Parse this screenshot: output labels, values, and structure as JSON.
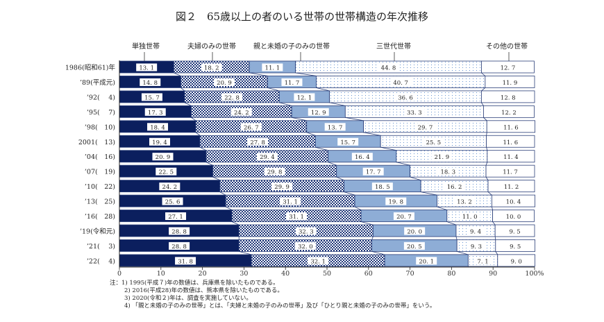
{
  "chart_data": {
    "type": "bar",
    "orientation": "horizontal",
    "stacked": true,
    "title": "図２　65歳以上の者のいる世帯の世帯構造の年次推移",
    "categories": [
      "1986(昭和61)年",
      "’89(平成元)",
      "’92(　 4)",
      "’95(　 7)",
      "’98(　10)",
      "2001(　13)",
      "’04(　16)",
      "’07(　19)",
      "’10(　22)",
      "’13(　25)",
      "’16(　28)",
      "’19(令和元)",
      "’21(　 3)",
      "’22(　 4)"
    ],
    "series": [
      {
        "name": "単独世帯",
        "color": "#0b1f5e",
        "pattern": "solid",
        "values": [
          13.1,
          14.8,
          15.7,
          17.3,
          18.4,
          19.4,
          20.9,
          22.5,
          24.2,
          25.6,
          27.1,
          28.8,
          28.8,
          31.8
        ]
      },
      {
        "name": "夫婦のみの世帯",
        "color": "#1c3478",
        "pattern": "checker",
        "values": [
          18.2,
          20.9,
          22.8,
          24.2,
          26.7,
          27.8,
          29.4,
          29.8,
          29.9,
          31.1,
          31.1,
          32.3,
          32.0,
          32.1
        ]
      },
      {
        "name": "親と未婚の子のみの世帯",
        "color": "#8eadd6",
        "pattern": "solid",
        "values": [
          11.1,
          11.7,
          12.1,
          12.9,
          13.7,
          15.7,
          16.4,
          17.7,
          18.5,
          19.8,
          20.7,
          20.0,
          20.5,
          20.1
        ]
      },
      {
        "name": "三世代世帯",
        "color": "#5f8fd0",
        "pattern": "dots",
        "values": [
          44.8,
          40.7,
          36.6,
          33.3,
          29.7,
          25.5,
          21.9,
          18.3,
          16.2,
          13.2,
          11.0,
          9.4,
          9.3,
          7.1
        ]
      },
      {
        "name": "その他の世帯",
        "color": "#ffffff",
        "pattern": "solid",
        "values": [
          12.7,
          11.9,
          12.8,
          12.2,
          11.6,
          11.6,
          11.4,
          11.7,
          11.2,
          10.4,
          10.0,
          9.5,
          9.5,
          9.0
        ]
      }
    ],
    "xlim": [
      0,
      100
    ],
    "xticks": [
      "0",
      "10",
      "20",
      "30",
      "40",
      "50",
      "60",
      "70",
      "80",
      "90",
      "100%"
    ],
    "legend_placement": "top",
    "grid": false,
    "notes": [
      "注：1)  1995(平成７)年の数値は、兵庫県を除いたものである。",
      "2)  2016(平成28)年の数値は、熊本県を除いたものである。",
      "3)  2020(令和２)年は、調査を実施していない。",
      "4)  「親と未婚の子のみの世帯」とは、「夫婦と未婚の子のみの世帯」及び「ひとり親と未婚の子のみの世帯」をいう。"
    ]
  }
}
